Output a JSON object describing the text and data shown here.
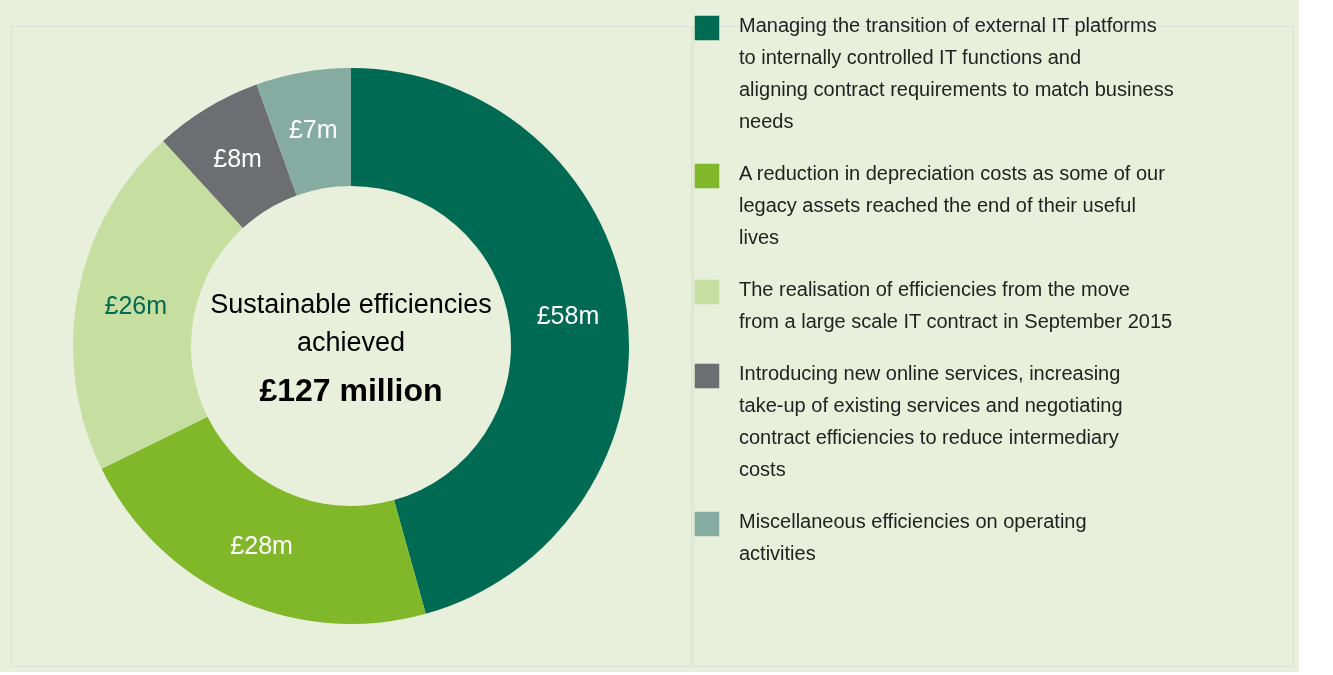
{
  "chart_data": {
    "type": "donut",
    "categories": [
      "Managing the transition of external IT platforms to internally controlled IT functions and aligning contract requirements to match business needs",
      "A reduction in depreciation costs as some of our legacy assets reached the end of their useful lives",
      "The realisation of efficiencies from the move from a large scale IT contract in September 2015",
      "Introducing new online services, increasing take-up of existing services and negotiating contract efficiencies to reduce intermediary costs",
      "Miscellaneous efficiencies on operating activities"
    ],
    "values": [
      58,
      28,
      26,
      8,
      7
    ],
    "colors": [
      "#006a52",
      "#80b82a",
      "#c6de9f",
      "#6d6e71",
      "#86aba0"
    ],
    "value_labels": [
      "£58m",
      "£28m",
      "£26m",
      "£8m",
      "£7m"
    ],
    "annotations": [
      "Sustainable efficiencies achieved",
      "£127 million"
    ],
    "legend": "right"
  }
}
